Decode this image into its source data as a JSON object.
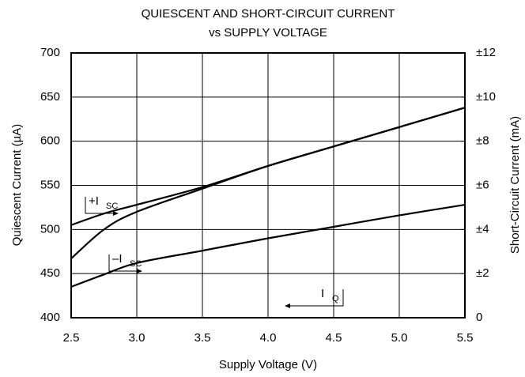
{
  "chart_data": {
    "type": "line",
    "title": [
      "QUIESCENT AND SHORT-CIRCUIT CURRENT",
      "vs SUPPLY VOLTAGE"
    ],
    "x_label": "Supply Voltage (V)",
    "y_label": "Quiescent Current (µA)",
    "y2_label": "Short-Circuit Current (mA)",
    "x": [
      2.5,
      2.75,
      3.0,
      3.5,
      4.0,
      4.5,
      5.0,
      5.5
    ],
    "series": [
      {
        "color": "#000000",
        "axis": "y",
        "values": [
          435,
          449,
          462,
          476,
          490,
          503,
          516,
          528
        ]
      },
      {
        "color": "#000000",
        "axis": "y2",
        "values": [
          4.2,
          4.72,
          5.12,
          5.92,
          6.88,
          7.76,
          8.64,
          9.52
        ]
      },
      {
        "color": "#000000",
        "axis": "y2",
        "values": [
          2.68,
          4.0,
          4.8,
          5.85,
          6.88,
          7.76,
          8.64,
          9.52
        ]
      }
    ],
    "annotations": [
      {
        "text": "+I",
        "sub": "SC"
      },
      {
        "text": "–I",
        "sub": "SC"
      },
      {
        "text": "I",
        "sub": "Q"
      }
    ],
    "xlim": [
      2.5,
      5.5
    ],
    "xticks": [
      2.5,
      {
        "value": 3,
        "label": "3.0"
      },
      3.5,
      {
        "value": 4,
        "label": "4.0"
      },
      4.5,
      {
        "value": 5,
        "label": "5.0"
      },
      5.5
    ],
    "ylim": [
      400,
      700
    ],
    "yticks": [
      400,
      450,
      500,
      550,
      600,
      650,
      700
    ],
    "y2lim": [
      0,
      12
    ],
    "y2ticks": [
      0,
      {
        "value": 2,
        "label": "±2"
      },
      {
        "value": 4,
        "label": "±4"
      },
      {
        "value": 6,
        "label": "±6"
      },
      {
        "value": 8,
        "label": "±8"
      },
      {
        "value": 10,
        "label": "±10"
      },
      {
        "value": 12,
        "label": "±12"
      }
    ],
    "grid": true
  }
}
